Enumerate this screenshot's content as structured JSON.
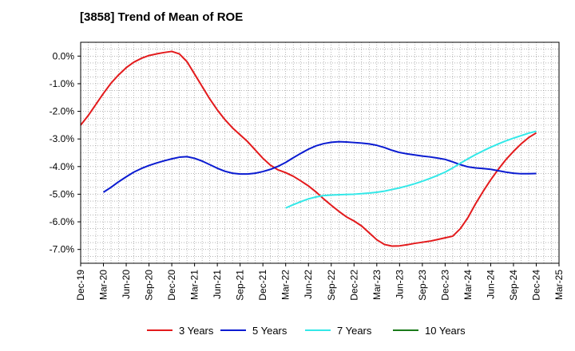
{
  "chart_data": {
    "type": "line",
    "title": "[3858]  Trend of Mean of ROE",
    "xlabel": "",
    "ylabel": "",
    "y_unit": "%",
    "ylim": [
      -7.5,
      0.5
    ],
    "y_ticks": [
      0.0,
      -1.0,
      -2.0,
      -3.0,
      -4.0,
      -5.0,
      -6.0,
      -7.0
    ],
    "y_tick_labels": [
      "0.0%",
      "-1.0%",
      "-2.0%",
      "-3.0%",
      "-4.0%",
      "-5.0%",
      "-6.0%",
      "-7.0%"
    ],
    "x_tick_labels": [
      "Dec-19",
      "Mar-20",
      "Jun-20",
      "Sep-20",
      "Dec-20",
      "Mar-21",
      "Jun-21",
      "Sep-21",
      "Dec-21",
      "Mar-22",
      "Jun-22",
      "Sep-22",
      "Dec-22",
      "Mar-23",
      "Jun-23",
      "Sep-23",
      "Dec-23",
      "Mar-24",
      "Jun-24",
      "Sep-24",
      "Dec-24",
      "Mar-25"
    ],
    "grid": true,
    "legend_position": "bottom",
    "series": [
      {
        "name": "3 Years",
        "color": "#e31a1c",
        "x": [
          "Dec-19",
          "Jan-20",
          "Feb-20",
          "Mar-20",
          "Apr-20",
          "May-20",
          "Jun-20",
          "Jul-20",
          "Aug-20",
          "Sep-20",
          "Oct-20",
          "Nov-20",
          "Dec-20",
          "Jan-21",
          "Feb-21",
          "Mar-21",
          "Apr-21",
          "May-21",
          "Jun-21",
          "Jul-21",
          "Aug-21",
          "Sep-21",
          "Oct-21",
          "Nov-21",
          "Dec-21",
          "Jan-22",
          "Feb-22",
          "Mar-22",
          "Apr-22",
          "May-22",
          "Jun-22",
          "Jul-22",
          "Aug-22",
          "Sep-22",
          "Oct-22",
          "Nov-22",
          "Dec-22",
          "Jan-23",
          "Feb-23",
          "Mar-23",
          "Apr-23",
          "May-23",
          "Jun-23",
          "Jul-23",
          "Aug-23",
          "Sep-23",
          "Oct-23",
          "Nov-23",
          "Dec-23",
          "Jan-24",
          "Feb-24",
          "Mar-24",
          "Apr-24",
          "May-24",
          "Jun-24",
          "Jul-24",
          "Aug-24",
          "Sep-24",
          "Oct-24",
          "Nov-24",
          "Dec-24"
        ],
        "values": [
          -2.5,
          -2.15,
          -1.75,
          -1.35,
          -0.98,
          -0.68,
          -0.42,
          -0.22,
          -0.08,
          0.02,
          0.08,
          0.13,
          0.17,
          0.08,
          -0.2,
          -0.65,
          -1.1,
          -1.55,
          -1.95,
          -2.3,
          -2.6,
          -2.85,
          -3.1,
          -3.4,
          -3.7,
          -3.95,
          -4.12,
          -4.22,
          -4.35,
          -4.52,
          -4.7,
          -4.92,
          -5.17,
          -5.4,
          -5.62,
          -5.82,
          -5.97,
          -6.15,
          -6.4,
          -6.65,
          -6.82,
          -6.88,
          -6.87,
          -6.83,
          -6.78,
          -6.74,
          -6.7,
          -6.64,
          -6.58,
          -6.52,
          -6.25,
          -5.85,
          -5.35,
          -4.9,
          -4.48,
          -4.1,
          -3.75,
          -3.45,
          -3.18,
          -2.95,
          -2.78
        ]
      },
      {
        "name": "5 Years",
        "color": "#0a1bd1",
        "x": [
          "Mar-20",
          "Apr-20",
          "May-20",
          "Jun-20",
          "Jul-20",
          "Aug-20",
          "Sep-20",
          "Oct-20",
          "Nov-20",
          "Dec-20",
          "Jan-21",
          "Feb-21",
          "Mar-21",
          "Apr-21",
          "May-21",
          "Jun-21",
          "Jul-21",
          "Aug-21",
          "Sep-21",
          "Oct-21",
          "Nov-21",
          "Dec-21",
          "Jan-22",
          "Feb-22",
          "Mar-22",
          "Apr-22",
          "May-22",
          "Jun-22",
          "Jul-22",
          "Aug-22",
          "Sep-22",
          "Oct-22",
          "Nov-22",
          "Dec-22",
          "Jan-23",
          "Feb-23",
          "Mar-23",
          "Apr-23",
          "May-23",
          "Jun-23",
          "Jul-23",
          "Aug-23",
          "Sep-23",
          "Oct-23",
          "Nov-23",
          "Dec-23",
          "Jan-24",
          "Feb-24",
          "Mar-24",
          "Apr-24",
          "May-24",
          "Jun-24",
          "Jul-24",
          "Aug-24",
          "Sep-24",
          "Oct-24",
          "Nov-24",
          "Dec-24"
        ],
        "values": [
          -4.93,
          -4.75,
          -4.55,
          -4.37,
          -4.2,
          -4.07,
          -3.96,
          -3.87,
          -3.79,
          -3.72,
          -3.66,
          -3.64,
          -3.7,
          -3.8,
          -3.93,
          -4.06,
          -4.17,
          -4.24,
          -4.27,
          -4.27,
          -4.24,
          -4.18,
          -4.1,
          -3.99,
          -3.85,
          -3.68,
          -3.52,
          -3.37,
          -3.25,
          -3.17,
          -3.12,
          -3.1,
          -3.11,
          -3.13,
          -3.15,
          -3.18,
          -3.23,
          -3.31,
          -3.41,
          -3.49,
          -3.54,
          -3.58,
          -3.62,
          -3.65,
          -3.69,
          -3.74,
          -3.83,
          -3.93,
          -4.01,
          -4.05,
          -4.07,
          -4.1,
          -4.15,
          -4.2,
          -4.24,
          -4.26,
          -4.26,
          -4.25
        ]
      },
      {
        "name": "7 Years",
        "color": "#33e8e8",
        "x": [
          "Mar-22",
          "Apr-22",
          "May-22",
          "Jun-22",
          "Jul-22",
          "Aug-22",
          "Sep-22",
          "Oct-22",
          "Nov-22",
          "Dec-22",
          "Jan-23",
          "Feb-23",
          "Mar-23",
          "Apr-23",
          "May-23",
          "Jun-23",
          "Jul-23",
          "Aug-23",
          "Sep-23",
          "Oct-23",
          "Nov-23",
          "Dec-23",
          "Jan-24",
          "Feb-24",
          "Mar-24",
          "Apr-24",
          "May-24",
          "Jun-24",
          "Jul-24",
          "Aug-24",
          "Sep-24",
          "Oct-24",
          "Nov-24",
          "Dec-24"
        ],
        "values": [
          -5.5,
          -5.38,
          -5.27,
          -5.17,
          -5.1,
          -5.05,
          -5.03,
          -5.02,
          -5.01,
          -5.0,
          -4.98,
          -4.96,
          -4.93,
          -4.89,
          -4.83,
          -4.77,
          -4.7,
          -4.62,
          -4.53,
          -4.43,
          -4.32,
          -4.2,
          -4.05,
          -3.88,
          -3.72,
          -3.57,
          -3.43,
          -3.3,
          -3.18,
          -3.07,
          -2.97,
          -2.88,
          -2.79,
          -2.72
        ]
      },
      {
        "name": "10 Years",
        "color": "#1a7a1a",
        "x": [],
        "values": []
      }
    ]
  }
}
